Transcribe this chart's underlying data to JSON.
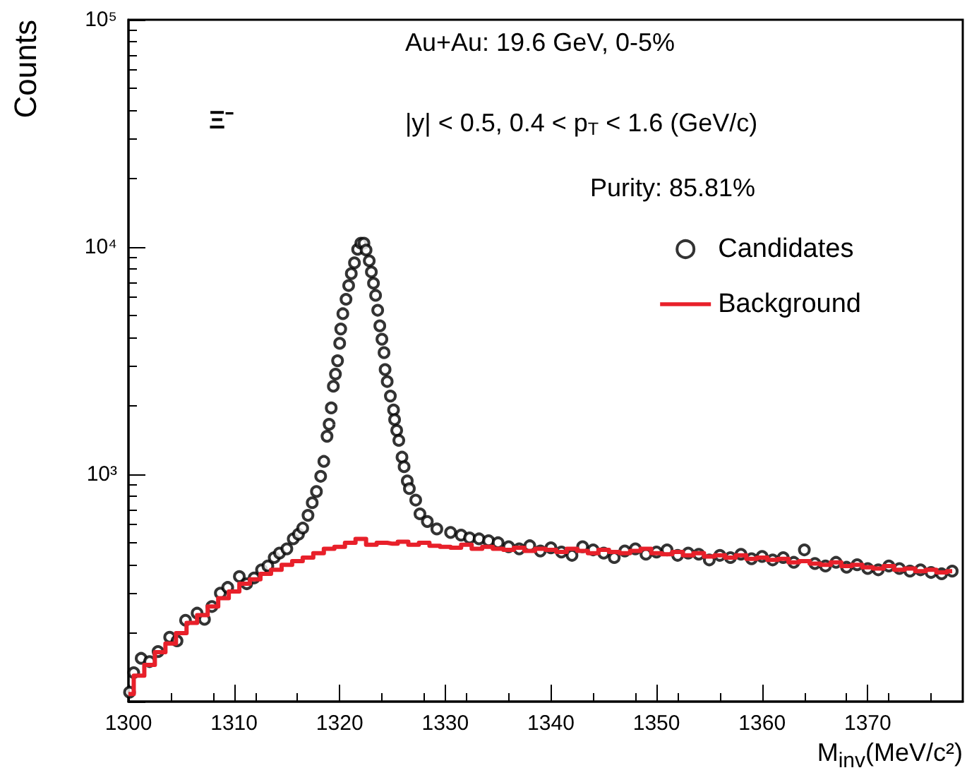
{
  "chart_data": {
    "type": "scatter",
    "xlabel": "M$_{inv}$(MeV/c²)",
    "ylabel": "Counts",
    "annotations": [
      "Au+Au: 19.6 GeV, 0-5%",
      "|y| < 0.5, 0.4 < p$_{T}$ < 1.6 (GeV/c)",
      "Purity: 85.81%",
      "Ξ⁻"
    ],
    "xlim": [
      1300,
      1379
    ],
    "xticks": [
      1300,
      1310,
      1320,
      1330,
      1340,
      1350,
      1360,
      1370
    ],
    "ylim": [
      100,
      100000
    ],
    "yticks": [
      {
        "value": 100,
        "label": null
      },
      {
        "value": 1000,
        "label": "10³"
      },
      {
        "value": 10000,
        "label": "10⁴"
      },
      {
        "value": 100000,
        "label": "10⁵"
      }
    ],
    "log": "y",
    "legend": "top right",
    "series": [
      {
        "name": "Candidates",
        "marker": "circle",
        "color": "#000000",
        "x": [
          1300.1,
          1300.5,
          1301.2,
          1302.0,
          1302.8,
          1303.9,
          1304.6,
          1305.4,
          1306.5,
          1307.2,
          1307.9,
          1308.7,
          1309.4,
          1310.5,
          1311.2,
          1311.9,
          1312.6,
          1313.2,
          1313.8,
          1314.3,
          1315.0,
          1315.6,
          1316.1,
          1316.5,
          1317.0,
          1317.4,
          1317.8,
          1318.2,
          1318.5,
          1318.8,
          1319.0,
          1319.2,
          1319.4,
          1319.6,
          1319.8,
          1320.0,
          1320.1,
          1320.3,
          1320.6,
          1320.85,
          1321.1,
          1321.4,
          1321.7,
          1322.0,
          1322.3,
          1322.5,
          1322.8,
          1323.0,
          1323.2,
          1323.4,
          1323.6,
          1323.8,
          1324.0,
          1324.2,
          1324.3,
          1324.5,
          1324.8,
          1325.1,
          1325.2,
          1325.4,
          1325.6,
          1325.9,
          1326.1,
          1326.4,
          1326.6,
          1327.2,
          1327.6,
          1328.3,
          1329.2,
          1330.5,
          1331.5,
          1332.3,
          1333.2,
          1334.1,
          1335,
          1336,
          1337,
          1338,
          1339,
          1340,
          1341,
          1342,
          1343,
          1344,
          1345,
          1346,
          1347,
          1348,
          1349,
          1350,
          1351,
          1352,
          1353,
          1354,
          1355,
          1356,
          1357,
          1358,
          1359,
          1360,
          1361,
          1362,
          1363,
          1364,
          1365,
          1366,
          1367,
          1368,
          1369,
          1370,
          1371,
          1372,
          1373,
          1374,
          1375,
          1376,
          1377,
          1378
        ],
        "values": [
          110,
          134,
          155,
          150,
          166,
          192,
          185,
          228,
          245,
          230,
          262,
          300,
          318,
          355,
          330,
          350,
          380,
          395,
          430,
          450,
          470,
          520,
          545,
          580,
          660,
          750,
          840,
          980,
          1140,
          1470,
          1660,
          1960,
          2440,
          2760,
          3160,
          3770,
          4360,
          5090,
          5890,
          6770,
          7640,
          8520,
          9770,
          10400,
          10400,
          9700,
          8700,
          7770,
          6930,
          6130,
          5270,
          4500,
          3930,
          3430,
          2890,
          2560,
          2210,
          1920,
          1740,
          1560,
          1410,
          1190,
          1080,
          935,
          865,
          770,
          670,
          620,
          575,
          555,
          540,
          525,
          520,
          510,
          500,
          480,
          470,
          485,
          460,
          475,
          455,
          440,
          480,
          465,
          450,
          430,
          460,
          470,
          445,
          455,
          465,
          440,
          450,
          445,
          420,
          440,
          430,
          445,
          425,
          435,
          420,
          430,
          410,
          465,
          405,
          395,
          410,
          390,
          400,
          385,
          380,
          395,
          385,
          375,
          380,
          370,
          365,
          375
        ]
      },
      {
        "name": "Background",
        "type": "step",
        "marker": "none",
        "color": "#e8202a",
        "x": [
          1300,
          1301,
          1302,
          1303,
          1304,
          1305,
          1306,
          1307,
          1308,
          1309,
          1310,
          1311,
          1312,
          1313,
          1314,
          1315,
          1316,
          1317,
          1318,
          1319,
          1320,
          1321,
          1322,
          1323,
          1324,
          1325,
          1326,
          1327,
          1328,
          1329,
          1330,
          1331,
          1332,
          1333,
          1334,
          1335,
          1336,
          1337,
          1338,
          1339,
          1340,
          1341,
          1342,
          1343,
          1344,
          1345,
          1346,
          1347,
          1348,
          1349,
          1350,
          1351,
          1352,
          1353,
          1354,
          1355,
          1356,
          1357,
          1358,
          1359,
          1360,
          1361,
          1362,
          1363,
          1364,
          1365,
          1366,
          1367,
          1368,
          1369,
          1370,
          1371,
          1372,
          1373,
          1374,
          1375,
          1376,
          1377,
          1378
        ],
        "values": [
          108,
          130,
          145,
          165,
          180,
          200,
          222,
          240,
          262,
          285,
          305,
          330,
          345,
          365,
          380,
          400,
          415,
          430,
          450,
          470,
          480,
          500,
          520,
          490,
          500,
          495,
          505,
          490,
          500,
          485,
          480,
          475,
          490,
          470,
          480,
          470,
          465,
          475,
          460,
          470,
          465,
          455,
          470,
          460,
          450,
          465,
          455,
          450,
          460,
          470,
          450,
          445,
          455,
          440,
          450,
          435,
          440,
          430,
          440,
          425,
          430,
          420,
          425,
          410,
          415,
          405,
          400,
          410,
          395,
          400,
          390,
          385,
          395,
          380,
          385,
          375,
          380,
          370,
          375
        ]
      }
    ]
  }
}
